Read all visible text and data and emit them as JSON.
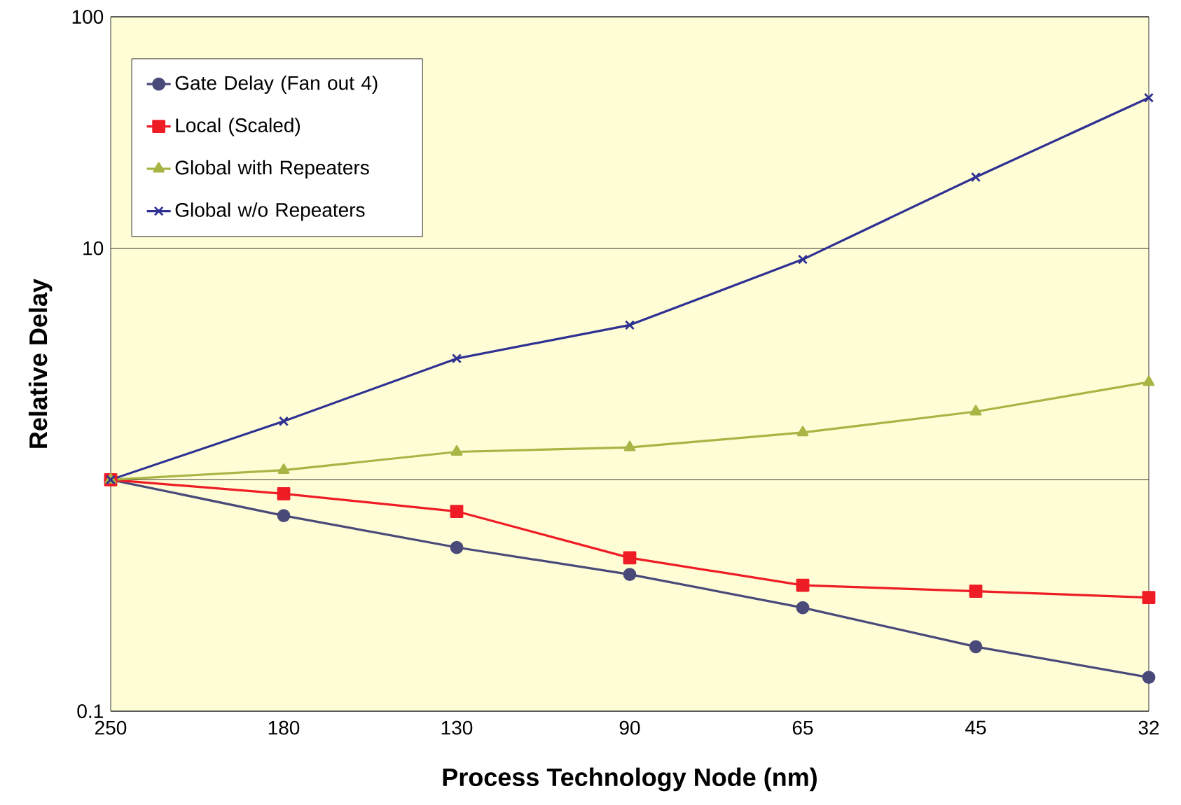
{
  "chart_data": {
    "type": "line",
    "xlabel": "Process Technology Node (nm)",
    "ylabel": "Relative Delay",
    "categories": [
      "250",
      "180",
      "130",
      "90",
      "65",
      "45",
      "32"
    ],
    "log": "y",
    "ylim": [
      0.1,
      100
    ],
    "yticks": [
      0.1,
      {
        "value": 1,
        "label": null
      },
      10,
      100
    ],
    "grid": "y",
    "legend": "top left",
    "series": [
      {
        "name": "Gate Delay (Fan out 4)",
        "color": "#4a4a7a",
        "marker": "circle",
        "values": [
          1,
          0.7,
          0.51,
          0.39,
          0.28,
          0.19,
          0.14
        ]
      },
      {
        "name": "Local (Scaled)",
        "color": "#ee1c25",
        "marker": "square",
        "values": [
          1,
          0.87,
          0.73,
          0.46,
          0.35,
          0.33,
          0.31
        ]
      },
      {
        "name": "Global with Repeaters",
        "color": "#a8b545",
        "marker": "triangle",
        "values": [
          1,
          1.1,
          1.32,
          1.38,
          1.6,
          1.97,
          2.64
        ]
      },
      {
        "name": "Global w/o Repeaters",
        "color": "#2e3192",
        "marker": "cross",
        "values": [
          1,
          1.79,
          3.34,
          4.66,
          8.95,
          20.3,
          44.7
        ]
      }
    ]
  }
}
